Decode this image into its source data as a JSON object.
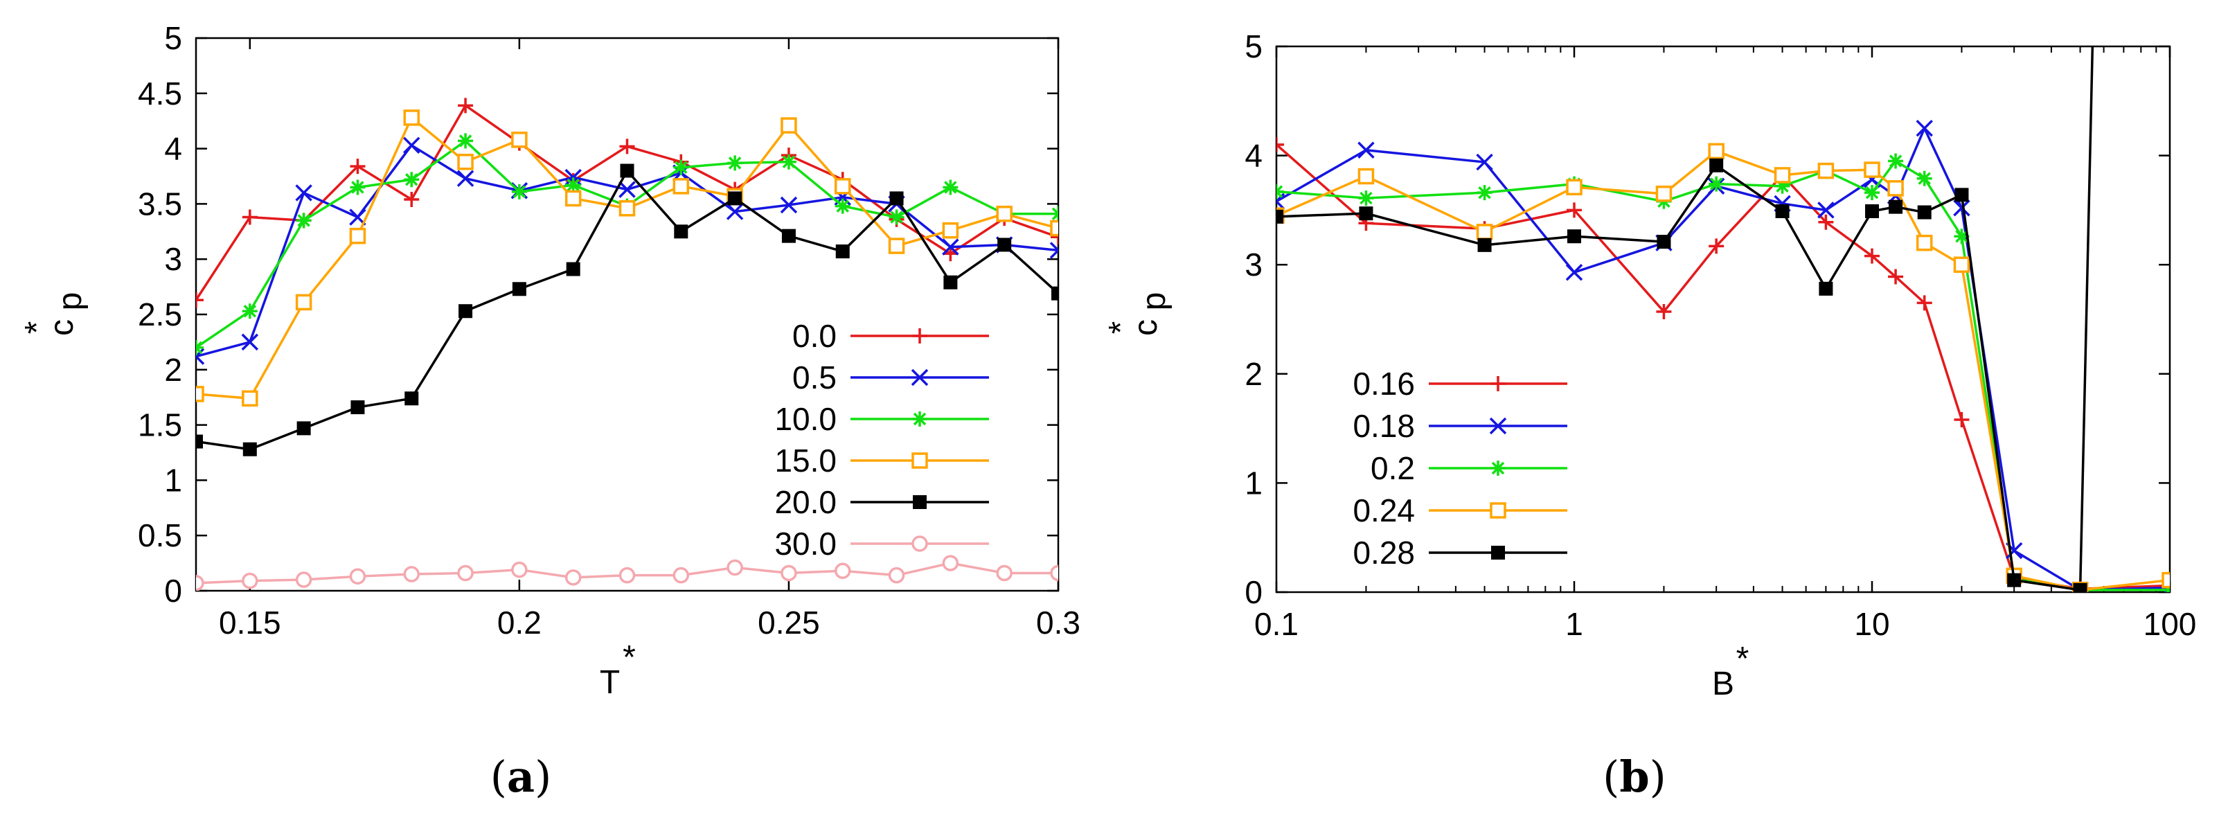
{
  "chart_data": [
    {
      "type": "line",
      "panel_label": "a",
      "xlabel": "T",
      "xlabel_sup": "*",
      "ylabel": "c",
      "ylabel_sub": "p",
      "ylabel_sup": "*",
      "xscale": "linear",
      "xlim": [
        0.14,
        0.3
      ],
      "ylim": [
        0,
        5
      ],
      "xticks": [
        0.15,
        0.2,
        0.25,
        0.3
      ],
      "xtick_labels": [
        "0.15",
        "0.2",
        "0.25",
        "0.3"
      ],
      "yticks": [
        0,
        0.5,
        1,
        1.5,
        2,
        2.5,
        3,
        3.5,
        4,
        4.5,
        5
      ],
      "ytick_labels": [
        "0",
        "0.5",
        "1",
        "1.5",
        "2",
        "2.5",
        "3",
        "3.5",
        "4",
        "4.5",
        "5"
      ],
      "legend_position": "lower-right",
      "grid": false,
      "x": [
        0.14,
        0.15,
        0.16,
        0.17,
        0.18,
        0.19,
        0.2,
        0.21,
        0.22,
        0.23,
        0.24,
        0.25,
        0.26,
        0.27,
        0.28,
        0.29,
        0.3
      ],
      "series": [
        {
          "name": "0.0",
          "color": "#e41a1c",
          "marker": "plus",
          "values": [
            2.63,
            3.38,
            3.35,
            3.84,
            3.54,
            4.39,
            4.05,
            3.71,
            4.02,
            3.88,
            3.63,
            3.94,
            3.72,
            3.36,
            3.05,
            3.37,
            3.2
          ]
        },
        {
          "name": "0.5",
          "color": "#1515e0",
          "marker": "x",
          "values": [
            2.12,
            2.25,
            3.6,
            3.38,
            4.03,
            3.73,
            3.62,
            3.74,
            3.63,
            3.78,
            3.43,
            3.49,
            3.56,
            3.5,
            3.11,
            3.13,
            3.08
          ]
        },
        {
          "name": "10.0",
          "color": "#12e012",
          "marker": "star",
          "values": [
            2.2,
            2.53,
            3.35,
            3.65,
            3.72,
            4.07,
            3.61,
            3.67,
            3.48,
            3.83,
            3.87,
            3.88,
            3.48,
            3.38,
            3.65,
            3.41,
            3.41
          ]
        },
        {
          "name": "15.0",
          "color": "#ffa500",
          "marker": "open-square",
          "values": [
            1.78,
            1.74,
            2.61,
            3.21,
            4.28,
            3.88,
            4.08,
            3.55,
            3.46,
            3.66,
            3.57,
            4.21,
            3.66,
            3.12,
            3.26,
            3.41,
            3.28
          ]
        },
        {
          "name": "20.0",
          "color": "#000000",
          "marker": "filled-square",
          "values": [
            1.35,
            1.28,
            1.47,
            1.66,
            1.74,
            2.53,
            2.73,
            2.91,
            3.8,
            3.25,
            3.55,
            3.21,
            3.07,
            3.55,
            2.79,
            3.13,
            2.69
          ]
        },
        {
          "name": "30.0",
          "color": "#f4a8ae",
          "marker": "open-circle",
          "values": [
            0.07,
            0.09,
            0.1,
            0.13,
            0.15,
            0.16,
            0.19,
            0.12,
            0.14,
            0.14,
            0.21,
            0.16,
            0.18,
            0.14,
            0.25,
            0.16,
            0.16
          ]
        }
      ]
    },
    {
      "type": "line",
      "panel_label": "b",
      "xlabel": "B",
      "xlabel_sup": "*",
      "ylabel": "c",
      "ylabel_sub": "p",
      "ylabel_sup": "*",
      "xscale": "log",
      "xlim": [
        0.1,
        100
      ],
      "ylim": [
        0,
        5
      ],
      "xticks": [
        0.1,
        1,
        10,
        100
      ],
      "xtick_labels": [
        "0.1",
        "1",
        "10",
        "100"
      ],
      "yticks": [
        0,
        1,
        2,
        3,
        4,
        5
      ],
      "ytick_labels": [
        "0",
        "1",
        "2",
        "3",
        "4",
        "5"
      ],
      "legend_position": "middle-left",
      "grid": false,
      "x": [
        0.1,
        0.2,
        0.5,
        1,
        2,
        3,
        5,
        7,
        10,
        12,
        15,
        20,
        30,
        50,
        100
      ],
      "series": [
        {
          "name": "0.16",
          "color": "#e41a1c",
          "marker": "plus",
          "values": [
            4.1,
            3.38,
            3.33,
            3.5,
            2.57,
            3.17,
            3.82,
            3.39,
            3.08,
            2.89,
            2.65,
            1.58,
            0.13,
            0.03,
            0.06
          ]
        },
        {
          "name": "0.18",
          "color": "#1515e0",
          "marker": "x",
          "values": [
            3.58,
            4.05,
            3.94,
            2.93,
            3.2,
            3.72,
            3.56,
            3.5,
            3.78,
            3.63,
            4.25,
            3.52,
            0.38,
            0.02,
            0.04
          ]
        },
        {
          "name": "0.2",
          "color": "#12e012",
          "marker": "star",
          "values": [
            3.67,
            3.61,
            3.66,
            3.74,
            3.58,
            3.74,
            3.72,
            3.86,
            3.66,
            3.95,
            3.79,
            3.26,
            0.12,
            0.02,
            0.02
          ]
        },
        {
          "name": "0.24",
          "color": "#ffa500",
          "marker": "open-square",
          "values": [
            3.45,
            3.81,
            3.3,
            3.71,
            3.65,
            4.04,
            3.82,
            3.86,
            3.87,
            3.7,
            3.2,
            3.0,
            0.15,
            0.02,
            0.11
          ]
        },
        {
          "name": "0.28",
          "color": "#000000",
          "marker": "filled-square",
          "values": [
            3.44,
            3.47,
            3.18,
            3.26,
            3.21,
            3.91,
            3.49,
            2.78,
            3.49,
            3.53,
            3.48,
            3.64,
            0.11,
            0.02,
            null
          ]
        }
      ],
      "extra_line": {
        "name": "spike",
        "color": "#000000",
        "x": [
          50,
          55
        ],
        "values": [
          0.02,
          5.0
        ]
      }
    }
  ]
}
